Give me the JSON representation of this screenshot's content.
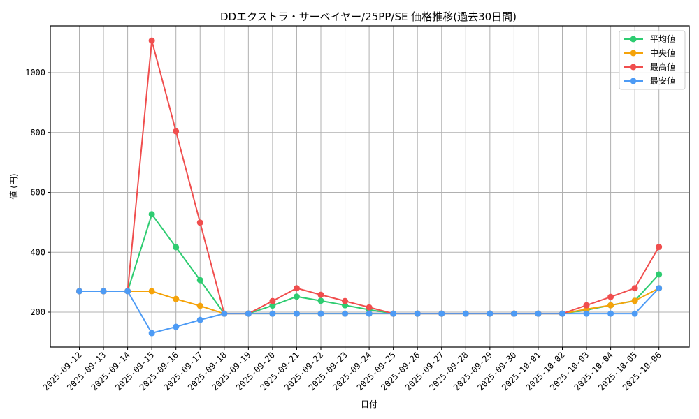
{
  "chart_data": {
    "type": "line",
    "title": "DDエクストラ・サーベイヤー/25PP/SE 価格推移(過去30日間)",
    "xlabel": "日付",
    "ylabel": "値 (円)",
    "ylim": [
      85,
      1155
    ],
    "yticks": [
      200,
      400,
      600,
      800,
      1000
    ],
    "grid": true,
    "legend_position": "upper right",
    "categories": [
      "2025-09-12",
      "2025-09-13",
      "2025-09-14",
      "2025-09-15",
      "2025-09-16",
      "2025-09-17",
      "2025-09-18",
      "2025-09-19",
      "2025-09-20",
      "2025-09-21",
      "2025-09-22",
      "2025-09-23",
      "2025-09-24",
      "2025-09-25",
      "2025-09-26",
      "2025-09-27",
      "2025-09-28",
      "2025-09-29",
      "2025-09-30",
      "2025-10-01",
      "2025-10-02",
      "2025-10-03",
      "2025-10-04",
      "2025-10-05",
      "2025-10-06"
    ],
    "series": [
      {
        "name": "平均値",
        "color": "#2ecc71",
        "values": [
          270,
          270,
          270,
          527,
          417,
          307,
          195,
          195,
          222,
          252,
          238,
          223,
          208,
          195,
          195,
          195,
          195,
          195,
          195,
          195,
          195,
          207,
          223,
          238,
          326
        ]
      },
      {
        "name": "中央値",
        "color": "#f5a30a",
        "values": [
          270,
          270,
          270,
          270,
          244,
          221,
          195,
          195,
          195,
          195,
          195,
          195,
          195,
          195,
          195,
          195,
          195,
          195,
          195,
          195,
          195,
          210,
          223,
          238,
          280
        ]
      },
      {
        "name": "最高値",
        "color": "#f04e4e",
        "values": [
          270,
          270,
          270,
          1107,
          804,
          499,
          195,
          195,
          237,
          280,
          258,
          237,
          216,
          195,
          195,
          195,
          195,
          195,
          195,
          195,
          195,
          223,
          251,
          280,
          418
        ]
      },
      {
        "name": "最安値",
        "color": "#4d9bf5",
        "values": [
          270,
          270,
          270,
          130,
          151,
          174,
          195,
          195,
          195,
          195,
          195,
          195,
          195,
          195,
          195,
          195,
          195,
          195,
          195,
          195,
          195,
          195,
          195,
          195,
          280
        ]
      }
    ]
  }
}
